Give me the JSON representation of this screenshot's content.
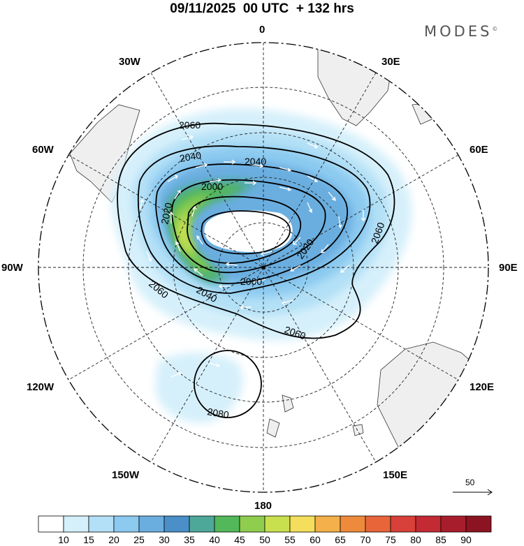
{
  "title": "09/11/2025  00 UTC  + 132 hrs",
  "brand": "MODES",
  "brand_mark": "©",
  "longitude_labels": {
    "n0": "0",
    "n30e": "30E",
    "n60e": "60E",
    "n90e": "90E",
    "n120e": "120E",
    "n150e": "150E",
    "n180": "180",
    "n150w": "150W",
    "n120w": "120W",
    "n90w": "90W",
    "n60w": "60W",
    "n30w": "30W"
  },
  "contour_labels": {
    "c2060a": "2060",
    "c2040a": "2040",
    "c2040b": "2040",
    "c2000a": "2000",
    "c2020a": "2020",
    "c2060b": "2060",
    "c2020b": "2020",
    "c2060c": "2060",
    "c2000b": "2000",
    "c2040c": "2040",
    "c2060d": "2060",
    "c2080": "2080"
  },
  "vector_scale": {
    "label": "50"
  },
  "colorbar": {
    "ticks": [
      "10",
      "15",
      "20",
      "25",
      "30",
      "35",
      "40",
      "45",
      "50",
      "55",
      "60",
      "65",
      "70",
      "75",
      "80",
      "85",
      "90"
    ],
    "colors": [
      "#ffffff",
      "#d6f0fb",
      "#b3e0f6",
      "#8ccaf0",
      "#6aaee0",
      "#4a8fc8",
      "#4ea89a",
      "#52b85a",
      "#8fcd4f",
      "#c9e04e",
      "#f4de5c",
      "#f4b04a",
      "#ee8a3c",
      "#e8653a",
      "#d8403a",
      "#c42a34",
      "#a81d2c",
      "#8c1422"
    ]
  },
  "colors": {
    "land": "#efefef",
    "coast": "#333333",
    "grid": "#222222",
    "contour": "#000000"
  }
}
